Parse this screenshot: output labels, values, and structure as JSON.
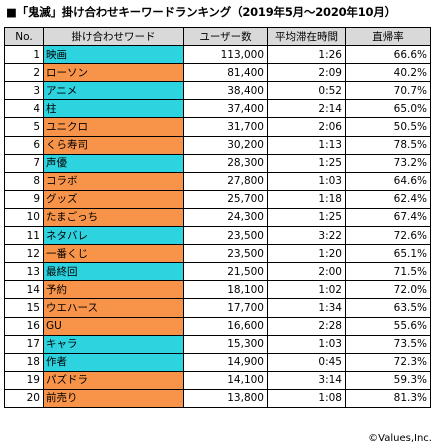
{
  "title": "■「鬼滅」掛け合わせキーワードランキング（2019年5月〜2020年10月）",
  "headers": {
    "no": "No.",
    "keyword": "掛け合わせワード",
    "users": "ユーザー数",
    "time": "平均滞在時間",
    "bounce": "直帰率"
  },
  "rows": [
    {
      "no": "1",
      "keyword": "映画",
      "users": "113,000",
      "time": "1:26",
      "bounce": "66.6%",
      "color": "#2ed3e0"
    },
    {
      "no": "2",
      "keyword": "ローソン",
      "users": "81,400",
      "time": "2:09",
      "bounce": "40.2%",
      "color": "#f7944a"
    },
    {
      "no": "3",
      "keyword": "アニメ",
      "users": "38,400",
      "time": "0:52",
      "bounce": "70.7%",
      "color": "#2ed3e0"
    },
    {
      "no": "4",
      "keyword": "柱",
      "users": "37,400",
      "time": "2:14",
      "bounce": "65.0%",
      "color": "#2ed3e0"
    },
    {
      "no": "5",
      "keyword": "ユニクロ",
      "users": "31,700",
      "time": "2:06",
      "bounce": "50.5%",
      "color": "#f7944a"
    },
    {
      "no": "6",
      "keyword": "くら寿司",
      "users": "30,200",
      "time": "1:13",
      "bounce": "78.5%",
      "color": "#f7944a"
    },
    {
      "no": "7",
      "keyword": "声優",
      "users": "28,300",
      "time": "1:25",
      "bounce": "73.2%",
      "color": "#2ed3e0"
    },
    {
      "no": "8",
      "keyword": "コラボ",
      "users": "27,800",
      "time": "1:03",
      "bounce": "64.6%",
      "color": "#f7944a"
    },
    {
      "no": "9",
      "keyword": "グッズ",
      "users": "25,700",
      "time": "1:18",
      "bounce": "62.4%",
      "color": "#f7944a"
    },
    {
      "no": "10",
      "keyword": "たまごっち",
      "users": "24,300",
      "time": "1:25",
      "bounce": "67.4%",
      "color": "#f7944a"
    },
    {
      "no": "11",
      "keyword": "ネタバレ",
      "users": "23,500",
      "time": "3:22",
      "bounce": "72.6%",
      "color": "#2ed3e0"
    },
    {
      "no": "12",
      "keyword": "一番くじ",
      "users": "23,500",
      "time": "1:20",
      "bounce": "65.1%",
      "color": "#f7944a"
    },
    {
      "no": "13",
      "keyword": "最終回",
      "users": "21,500",
      "time": "2:00",
      "bounce": "71.5%",
      "color": "#2ed3e0"
    },
    {
      "no": "14",
      "keyword": "予約",
      "users": "18,100",
      "time": "1:02",
      "bounce": "72.0%",
      "color": "#f7944a"
    },
    {
      "no": "15",
      "keyword": "ウエハース",
      "users": "17,700",
      "time": "1:34",
      "bounce": "63.5%",
      "color": "#f7944a"
    },
    {
      "no": "16",
      "keyword": "GU",
      "users": "16,600",
      "time": "2:28",
      "bounce": "55.6%",
      "color": "#f7944a"
    },
    {
      "no": "17",
      "keyword": "キャラ",
      "users": "15,300",
      "time": "1:03",
      "bounce": "73.5%",
      "color": "#2ed3e0"
    },
    {
      "no": "18",
      "keyword": "作者",
      "users": "14,900",
      "time": "0:45",
      "bounce": "72.3%",
      "color": "#2ed3e0"
    },
    {
      "no": "19",
      "keyword": "パズドラ",
      "users": "14,100",
      "time": "3:14",
      "bounce": "59.3%",
      "color": "#f7944a"
    },
    {
      "no": "20",
      "keyword": "前売り",
      "users": "13,800",
      "time": "1:08",
      "bounce": "81.3%",
      "color": "#f7944a"
    }
  ],
  "credit": "©Values,Inc."
}
